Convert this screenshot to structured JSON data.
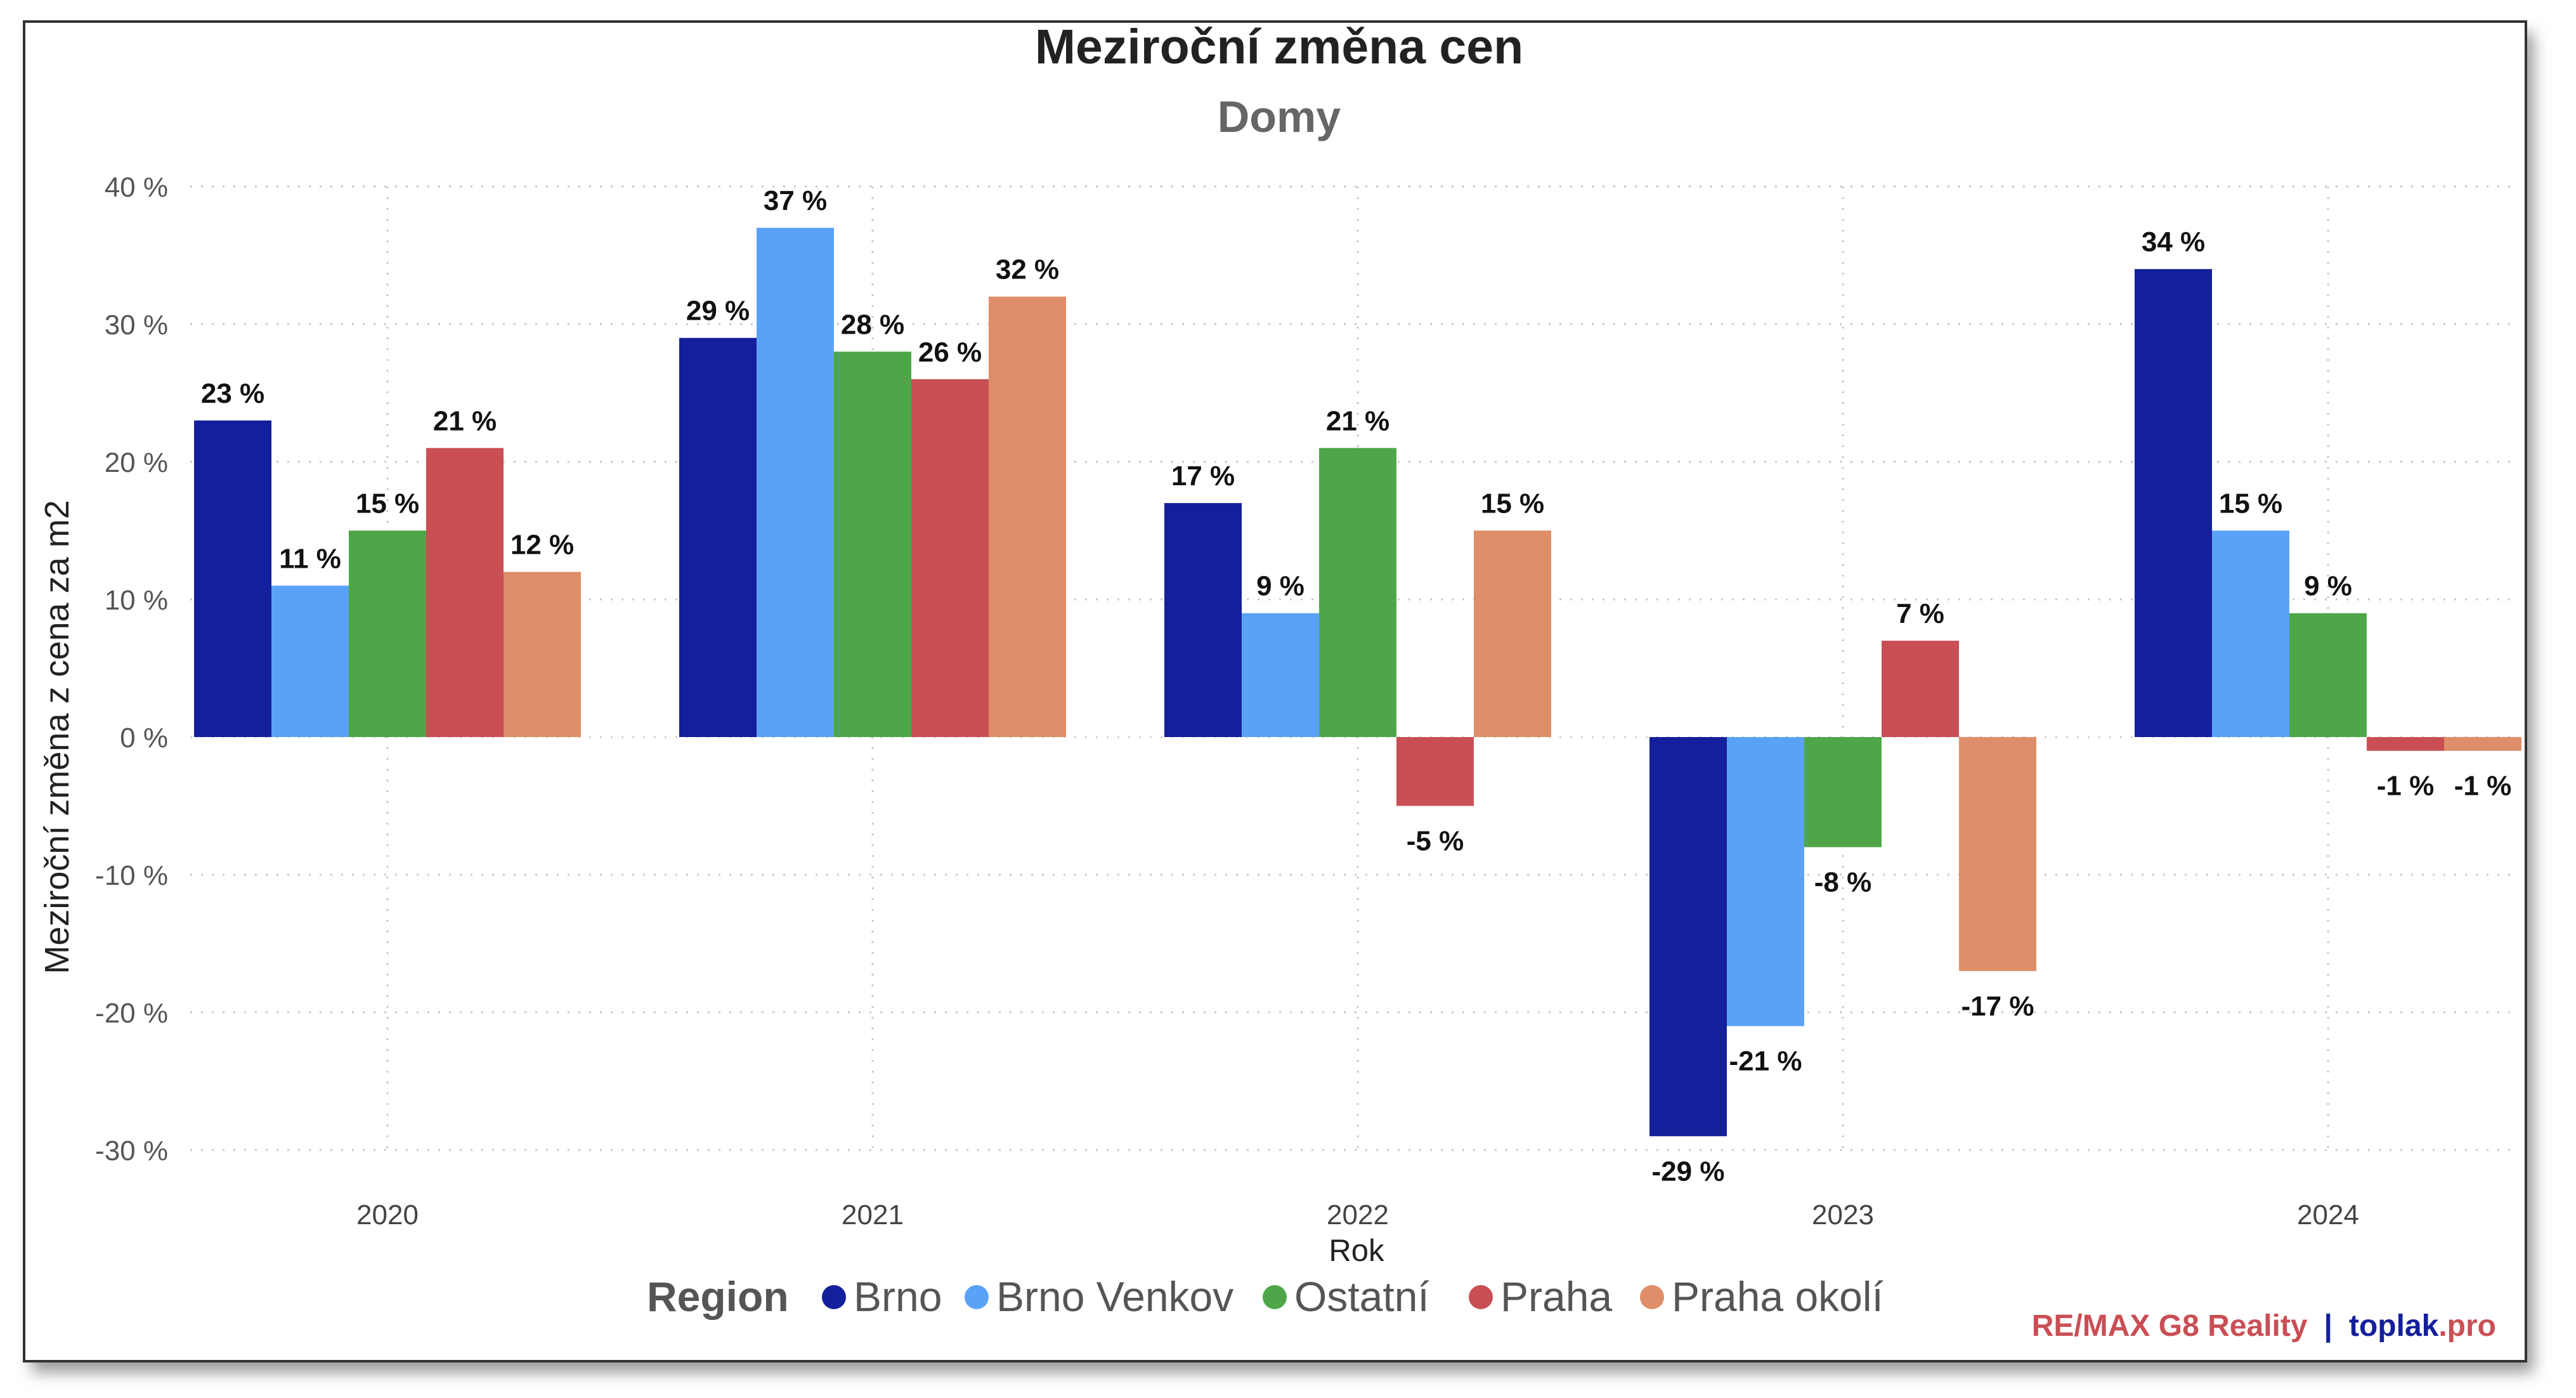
{
  "chart_data": {
    "type": "bar",
    "title": "Meziroční změna cen",
    "subtitle": "Domy",
    "xlabel": "Rok",
    "ylabel": "Meziroční změna z cena za m2",
    "ylim": [
      -30,
      40
    ],
    "yticks": [
      40,
      30,
      20,
      10,
      0,
      -10,
      -20,
      -30
    ],
    "ytick_labels": [
      "40 %",
      "30 %",
      "20 %",
      "10 %",
      "0 %",
      "-10 %",
      "-20 %",
      "-30 %"
    ],
    "categories": [
      "2020",
      "2021",
      "2022",
      "2023",
      "2024"
    ],
    "grid": true,
    "legend_position": "bottom",
    "legend_title": "Region",
    "series": [
      {
        "name": "Brno",
        "color": "#14209b",
        "values": [
          23,
          29,
          17,
          -29,
          34
        ],
        "labels": [
          "23 %",
          "29 %",
          "17 %",
          "-29 %",
          "34 %"
        ]
      },
      {
        "name": "Brno Venkov",
        "color": "#5aa2f8",
        "values": [
          11,
          37,
          9,
          -21,
          15
        ],
        "labels": [
          "11 %",
          "37 %",
          "9 %",
          "-21 %",
          "15 %"
        ]
      },
      {
        "name": "Ostatní",
        "color": "#4ea649",
        "values": [
          15,
          28,
          21,
          -8,
          9
        ],
        "labels": [
          "15 %",
          "28 %",
          "21 %",
          "-8 %",
          "9 %"
        ]
      },
      {
        "name": "Praha",
        "color": "#c94f55",
        "values": [
          21,
          26,
          -5,
          7,
          -1
        ],
        "labels": [
          "21 %",
          "26 %",
          "-5 %",
          "7 %",
          "-1 %"
        ]
      },
      {
        "name": "Praha okolí",
        "color": "#de8e68",
        "values": [
          12,
          32,
          15,
          -17,
          -1
        ],
        "labels": [
          "12 %",
          "32 %",
          "15 %",
          "-17 %",
          "-1 %"
        ]
      }
    ]
  },
  "branding": {
    "remax": "RE/MAX G8 Reality",
    "separator": "|",
    "toplak": "toplak",
    "toplak_suffix": ".pro"
  }
}
